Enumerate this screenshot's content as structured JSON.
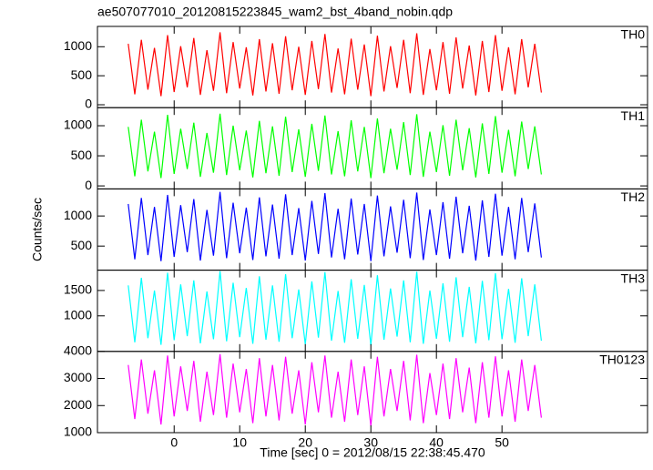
{
  "chart_data": {
    "type": "line",
    "title": "ae507077010_20120815223845_wam2_bst_4band_nobin.qdp",
    "xlabel": "Time [sec] 0 = 2012/08/15 22:38:45.470",
    "ylabel": "Counts/sec",
    "xlim": [
      -11.7,
      72.2
    ],
    "xticks": [
      0,
      10,
      20,
      30,
      40,
      50
    ],
    "x": [
      -7,
      -6,
      -5,
      -4,
      -3,
      -2,
      -1,
      0,
      1,
      2,
      3,
      4,
      5,
      6,
      7,
      8,
      9,
      10,
      11,
      12,
      13,
      14,
      15,
      16,
      17,
      18,
      19,
      20,
      21,
      22,
      23,
      24,
      25,
      26,
      27,
      28,
      29,
      30,
      31,
      32,
      33,
      34,
      35,
      36,
      37,
      38,
      39,
      40,
      41,
      42,
      43,
      44,
      45,
      46,
      47,
      48,
      49,
      50,
      51,
      52,
      53,
      54,
      55,
      56
    ],
    "series": [
      {
        "name": "TH0",
        "color": "#ff0000",
        "ylim": [
          -50,
          1350
        ],
        "yticks": [
          0,
          500,
          1000
        ],
        "values": [
          1050,
          180,
          1120,
          260,
          980,
          150,
          1200,
          220,
          1010,
          300,
          1150,
          170,
          940,
          240,
          1250,
          200,
          1080,
          280,
          990,
          160,
          1130,
          230,
          1060,
          190,
          1180,
          250,
          1000,
          170,
          1100,
          270,
          1220,
          210,
          970,
          180,
          1140,
          260,
          1040,
          150,
          1190,
          230,
          1010,
          290,
          1120,
          200,
          1230,
          170,
          960,
          250,
          1080,
          190,
          1160,
          280,
          1020,
          160,
          1100,
          220,
          1200,
          240,
          990,
          180,
          1130,
          300,
          1050,
          210
        ]
      },
      {
        "name": "TH1",
        "color": "#00ff00",
        "ylim": [
          -50,
          1300
        ],
        "yticks": [
          0,
          500,
          1000
        ],
        "values": [
          980,
          160,
          1100,
          240,
          900,
          130,
          1180,
          200,
          950,
          280,
          1050,
          150,
          880,
          220,
          1200,
          180,
          1000,
          260,
          920,
          140,
          1080,
          210,
          990,
          170,
          1150,
          230,
          940,
          150,
          1030,
          250,
          1170,
          190,
          910,
          160,
          1090,
          240,
          980,
          130,
          1120,
          210,
          950,
          270,
          1060,
          180,
          1190,
          150,
          900,
          230,
          1010,
          170,
          1100,
          260,
          960,
          140,
          1040,
          200,
          1160,
          220,
          930,
          160,
          1070,
          280,
          990,
          190
        ]
      },
      {
        "name": "TH2",
        "color": "#0000ff",
        "ylim": [
          100,
          1450
        ],
        "yticks": [
          500,
          1000
        ],
        "values": [
          1200,
          280,
          1300,
          350,
          1150,
          250,
          1350,
          320,
          1180,
          400,
          1280,
          260,
          1100,
          340,
          1400,
          300,
          1220,
          380,
          1140,
          270,
          1310,
          330,
          1190,
          290,
          1360,
          350,
          1130,
          260,
          1250,
          370,
          1380,
          310,
          1120,
          280,
          1290,
          360,
          1200,
          250,
          1340,
          330,
          1160,
          390,
          1270,
          300,
          1390,
          270,
          1110,
          350,
          1230,
          290,
          1320,
          380,
          1170,
          260,
          1260,
          320,
          1370,
          340,
          1150,
          280,
          1300,
          400,
          1210,
          310
        ]
      },
      {
        "name": "TH3",
        "color": "#00ffff",
        "ylim": [
          300,
          1900
        ],
        "yticks": [
          1000,
          1500
        ],
        "values": [
          1600,
          480,
          1750,
          560,
          1500,
          430,
          1850,
          520,
          1620,
          600,
          1700,
          460,
          1480,
          540,
          1880,
          500,
          1650,
          580,
          1550,
          450,
          1780,
          530,
          1600,
          490,
          1820,
          560,
          1520,
          440,
          1680,
          570,
          1860,
          510,
          1490,
          470,
          1720,
          550,
          1610,
          420,
          1800,
          530,
          1540,
          590,
          1700,
          480,
          1870,
          450,
          1500,
          550,
          1640,
          490,
          1760,
          580,
          1570,
          460,
          1690,
          520,
          1840,
          540,
          1530,
          470,
          1740,
          600,
          1620,
          510
        ]
      },
      {
        "name": "TH0123",
        "color": "#ff00ff",
        "ylim": [
          1000,
          4000
        ],
        "yticks": [
          1000,
          2000,
          3000,
          4000
        ],
        "values": [
          3500,
          1500,
          3700,
          1700,
          3300,
          1300,
          3850,
          1600,
          3450,
          1800,
          3650,
          1400,
          3250,
          1650,
          3900,
          1550,
          3550,
          1750,
          3350,
          1350,
          3750,
          1600,
          3500,
          1450,
          3800,
          1700,
          3300,
          1300,
          3600,
          1750,
          3850,
          1550,
          3250,
          1400,
          3700,
          1650,
          3450,
          1250,
          3800,
          1600,
          3350,
          1800,
          3650,
          1450,
          3880,
          1350,
          3200,
          1650,
          3550,
          1500,
          3750,
          1750,
          3400,
          1350,
          3600,
          1550,
          3820,
          1600,
          3300,
          1400,
          3700,
          1800,
          3500,
          1550
        ]
      }
    ]
  }
}
